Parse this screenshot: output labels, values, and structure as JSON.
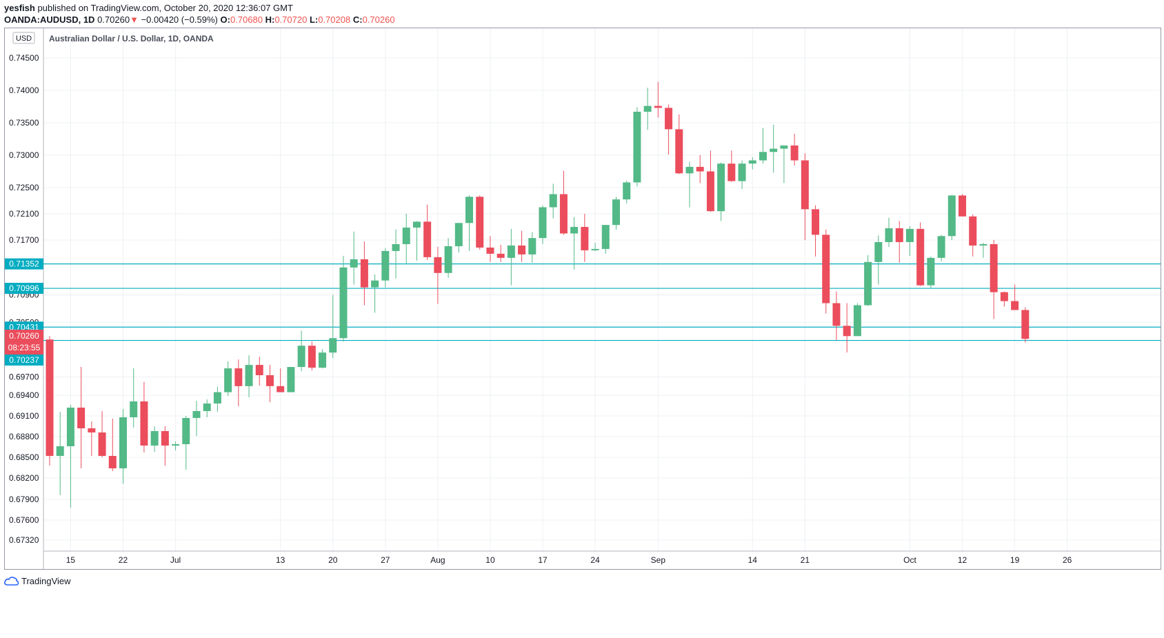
{
  "header": {
    "author": "yesfish",
    "published_text": "published on TradingView.com, October 20, 2020 12:36:07 GMT",
    "symbol": "OANDA:AUDUSD, 1D",
    "last": "0.70260",
    "change_arrow": "▼",
    "change": "−0.00420 (−0.59%)",
    "o_label": "O:",
    "o_value": "0.70680",
    "h_label": "H:",
    "h_value": "0.70720",
    "l_label": "L:",
    "l_value": "0.70208",
    "c_label": "C:",
    "c_value": "0.70260"
  },
  "footer": {
    "brand": "TradingView",
    "icon": "tradingview-cloud-icon"
  },
  "colors": {
    "up": "#53b987",
    "down": "#eb4d5c",
    "hline": "#00acc1",
    "grid": "#eef0f3"
  },
  "chart_data": {
    "type": "candlestick",
    "title": "Australian Dollar / U.S. Dollar, 1D, OANDA",
    "currency": "USD",
    "y_ticks": [
      "0.74500",
      "0.74000",
      "0.73500",
      "0.73000",
      "0.72500",
      "0.72100",
      "0.71700",
      "0.70900",
      "0.70500",
      "0.69700",
      "0.69400",
      "0.69100",
      "0.68800",
      "0.68500",
      "0.68200",
      "0.67900",
      "0.67600",
      "0.67320"
    ],
    "x_ticks": [
      {
        "label": "15",
        "i": 2
      },
      {
        "label": "22",
        "i": 7
      },
      {
        "label": "Jul",
        "i": 12
      },
      {
        "label": "13",
        "i": 22
      },
      {
        "label": "20",
        "i": 27
      },
      {
        "label": "27",
        "i": 32
      },
      {
        "label": "Aug",
        "i": 37
      },
      {
        "label": "10",
        "i": 42
      },
      {
        "label": "17",
        "i": 47
      },
      {
        "label": "24",
        "i": 52
      },
      {
        "label": "Sep",
        "i": 58
      },
      {
        "label": "14",
        "i": 67
      },
      {
        "label": "21",
        "i": 72
      },
      {
        "label": "Oct",
        "i": 82
      },
      {
        "label": "12",
        "i": 87
      },
      {
        "label": "19",
        "i": 92
      },
      {
        "label": "26",
        "i": 97
      }
    ],
    "horizontal_lines": [
      {
        "price": 0.71352,
        "label": "0.71352"
      },
      {
        "price": 0.70996,
        "label": "0.70996"
      },
      {
        "price": 0.70431,
        "label": "0.70431"
      },
      {
        "price": 0.70237,
        "label": "0.70237"
      }
    ],
    "last_price": {
      "label": "0.70260",
      "countdown": "08:23:55"
    },
    "candles": [
      [
        0.7025,
        0.703,
        0.6838,
        0.6852
      ],
      [
        0.6852,
        0.6916,
        0.6796,
        0.6866
      ],
      [
        0.6866,
        0.6926,
        0.6778,
        0.6922
      ],
      [
        0.6922,
        0.6985,
        0.6834,
        0.6892
      ],
      [
        0.6892,
        0.6902,
        0.6852,
        0.6886
      ],
      [
        0.6886,
        0.6917,
        0.685,
        0.6852
      ],
      [
        0.6852,
        0.6906,
        0.683,
        0.6834
      ],
      [
        0.6834,
        0.692,
        0.6812,
        0.6908
      ],
      [
        0.6908,
        0.6983,
        0.6893,
        0.6931
      ],
      [
        0.6931,
        0.6962,
        0.6857,
        0.6867
      ],
      [
        0.6867,
        0.6895,
        0.6858,
        0.6888
      ],
      [
        0.6888,
        0.6895,
        0.6838,
        0.6867
      ],
      [
        0.6867,
        0.6873,
        0.686,
        0.6869
      ],
      [
        0.6869,
        0.691,
        0.6832,
        0.6907
      ],
      [
        0.6907,
        0.6932,
        0.6881,
        0.6917
      ],
      [
        0.6917,
        0.6934,
        0.6908,
        0.6928
      ],
      [
        0.6928,
        0.6954,
        0.6916,
        0.6945
      ],
      [
        0.6945,
        0.6993,
        0.6939,
        0.6983
      ],
      [
        0.6983,
        0.6996,
        0.6924,
        0.6955
      ],
      [
        0.6955,
        0.7002,
        0.6937,
        0.6988
      ],
      [
        0.6988,
        0.7,
        0.6956,
        0.6973
      ],
      [
        0.6973,
        0.6988,
        0.693,
        0.6955
      ],
      [
        0.6955,
        0.6983,
        0.695,
        0.6945
      ],
      [
        0.6945,
        0.6985,
        0.6945,
        0.6985
      ],
      [
        0.6985,
        0.7038,
        0.6979,
        0.7016
      ],
      [
        0.7016,
        0.7022,
        0.698,
        0.6984
      ],
      [
        0.6984,
        0.7011,
        0.6983,
        0.7006
      ],
      [
        0.7006,
        0.709,
        0.6998,
        0.7027
      ],
      [
        0.7027,
        0.7147,
        0.7022,
        0.713
      ],
      [
        0.713,
        0.7183,
        0.7105,
        0.7142
      ],
      [
        0.7142,
        0.7168,
        0.7075,
        0.7101
      ],
      [
        0.7101,
        0.712,
        0.7064,
        0.7111
      ],
      [
        0.7111,
        0.7158,
        0.7101,
        0.7154
      ],
      [
        0.7154,
        0.7186,
        0.7114,
        0.7164
      ],
      [
        0.7164,
        0.721,
        0.7135,
        0.7189
      ],
      [
        0.7189,
        0.7199,
        0.714,
        0.7198
      ],
      [
        0.7198,
        0.7224,
        0.7141,
        0.7145
      ],
      [
        0.7145,
        0.716,
        0.7077,
        0.7122
      ],
      [
        0.7122,
        0.7173,
        0.7115,
        0.7161
      ],
      [
        0.7161,
        0.7196,
        0.7152,
        0.7196
      ],
      [
        0.7196,
        0.7238,
        0.7154,
        0.7236
      ],
      [
        0.7236,
        0.7238,
        0.7156,
        0.7159
      ],
      [
        0.7159,
        0.7176,
        0.7138,
        0.715
      ],
      [
        0.715,
        0.7163,
        0.7138,
        0.7144
      ],
      [
        0.7144,
        0.7187,
        0.7104,
        0.7162
      ],
      [
        0.7162,
        0.7184,
        0.7138,
        0.7149
      ],
      [
        0.7149,
        0.7182,
        0.7137,
        0.7173
      ],
      [
        0.7173,
        0.7223,
        0.7164,
        0.722
      ],
      [
        0.722,
        0.7256,
        0.7203,
        0.724
      ],
      [
        0.724,
        0.7276,
        0.7178,
        0.718
      ],
      [
        0.718,
        0.7205,
        0.7127,
        0.719
      ],
      [
        0.719,
        0.721,
        0.7138,
        0.7155
      ],
      [
        0.7155,
        0.7166,
        0.7154,
        0.7157
      ],
      [
        0.7157,
        0.7193,
        0.715,
        0.7193
      ],
      [
        0.7193,
        0.7236,
        0.7186,
        0.7232
      ],
      [
        0.7232,
        0.7261,
        0.7226,
        0.7258
      ],
      [
        0.7258,
        0.7374,
        0.7252,
        0.7367
      ],
      [
        0.7367,
        0.7404,
        0.7339,
        0.7376
      ],
      [
        0.7376,
        0.7413,
        0.7358,
        0.7373
      ],
      [
        0.7373,
        0.7378,
        0.7301,
        0.734
      ],
      [
        0.734,
        0.7363,
        0.7271,
        0.7272
      ],
      [
        0.7272,
        0.729,
        0.722,
        0.7282
      ],
      [
        0.7282,
        0.73,
        0.7257,
        0.7275
      ],
      [
        0.7275,
        0.7307,
        0.7213,
        0.7214
      ],
      [
        0.7214,
        0.7289,
        0.7199,
        0.7287
      ],
      [
        0.7287,
        0.7307,
        0.7259,
        0.726
      ],
      [
        0.726,
        0.7292,
        0.7248,
        0.7287
      ],
      [
        0.7287,
        0.7297,
        0.7278,
        0.7292
      ],
      [
        0.7292,
        0.7342,
        0.7287,
        0.7305
      ],
      [
        0.7305,
        0.7347,
        0.7273,
        0.731
      ],
      [
        0.731,
        0.7313,
        0.7257,
        0.7315
      ],
      [
        0.7315,
        0.7333,
        0.7284,
        0.7292
      ],
      [
        0.7292,
        0.7303,
        0.717,
        0.7217
      ],
      [
        0.7217,
        0.7223,
        0.7146,
        0.7178
      ],
      [
        0.7178,
        0.7186,
        0.7063,
        0.7078
      ],
      [
        0.7078,
        0.7095,
        0.7024,
        0.7045
      ],
      [
        0.7045,
        0.7078,
        0.7006,
        0.703
      ],
      [
        0.703,
        0.7078,
        0.703,
        0.7075
      ],
      [
        0.7075,
        0.7148,
        0.7074,
        0.7138
      ],
      [
        0.7138,
        0.7177,
        0.7105,
        0.7167
      ],
      [
        0.7167,
        0.7204,
        0.716,
        0.7188
      ],
      [
        0.7188,
        0.7199,
        0.7137,
        0.7167
      ],
      [
        0.7167,
        0.7191,
        0.7147,
        0.7187
      ],
      [
        0.7187,
        0.7197,
        0.7103,
        0.7104
      ],
      [
        0.7104,
        0.7146,
        0.71,
        0.7144
      ],
      [
        0.7144,
        0.7178,
        0.7139,
        0.7176
      ],
      [
        0.7176,
        0.7239,
        0.717,
        0.7238
      ],
      [
        0.7238,
        0.724,
        0.7206,
        0.7206
      ],
      [
        0.7206,
        0.7209,
        0.7146,
        0.7162
      ],
      [
        0.7162,
        0.7166,
        0.7144,
        0.7164
      ],
      [
        0.7164,
        0.717,
        0.7055,
        0.7094
      ],
      [
        0.7094,
        0.7095,
        0.7073,
        0.7081
      ],
      [
        0.7081,
        0.7105,
        0.7068,
        0.7068
      ],
      [
        0.7068,
        0.7072,
        0.70208,
        0.7026
      ]
    ]
  }
}
